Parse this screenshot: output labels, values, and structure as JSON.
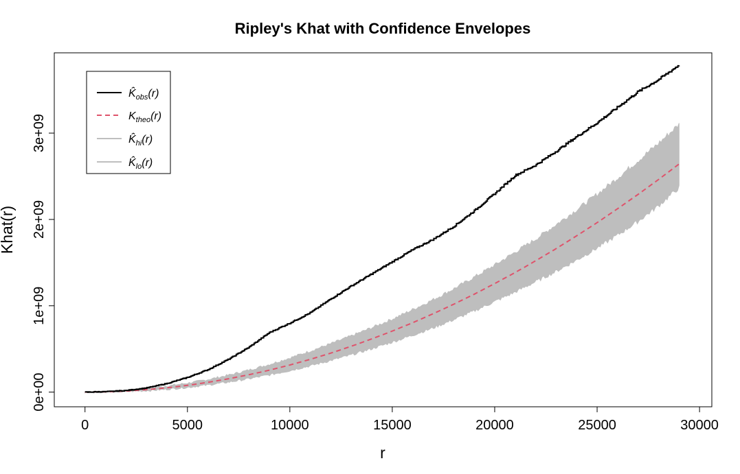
{
  "chart_data": {
    "type": "line",
    "title": "Ripley's Khat with Confidence Envelopes",
    "xlabel": "r",
    "ylabel": "Khat(r)",
    "xlim": [
      -1500,
      30600
    ],
    "ylim": [
      -170000000,
      3930000000
    ],
    "x_ticks": [
      0,
      5000,
      10000,
      15000,
      20000,
      25000,
      30000
    ],
    "x_tick_labels": [
      "0",
      "5000",
      "10000",
      "15000",
      "20000",
      "25000",
      "30000"
    ],
    "y_ticks": [
      0,
      1000000000,
      2000000000,
      3000000000
    ],
    "y_tick_labels": [
      "0e+00",
      "1e+09",
      "2e+09",
      "3e+09"
    ],
    "grid": false,
    "legend_position": "top-left",
    "legend": [
      {
        "label_main": "K̂",
        "label_sub": "obs",
        "label_tail": "(r)",
        "color": "#000000",
        "style": "solid"
      },
      {
        "label_main": "K",
        "label_sub": "theo",
        "label_tail": "(r)",
        "color": "#DF536B",
        "style": "dashed"
      },
      {
        "label_main": "K̂",
        "label_sub": "hi",
        "label_tail": "(r)",
        "color": "#BEBEBE",
        "style": "solid"
      },
      {
        "label_main": "K̂",
        "label_sub": "lo",
        "label_tail": "(r)",
        "color": "#BEBEBE",
        "style": "solid"
      }
    ],
    "x": [
      0,
      1000,
      2000,
      3000,
      4000,
      5000,
      6000,
      7000,
      8000,
      9000,
      10000,
      11000,
      12000,
      13000,
      14000,
      15000,
      16000,
      17000,
      18000,
      19000,
      20000,
      21000,
      22000,
      23000,
      24000,
      25000,
      26000,
      27000,
      28000,
      29000
    ],
    "series": [
      {
        "name": "obs",
        "color": "#000000",
        "values": [
          0,
          5000000,
          18000000,
          48000000,
          100000000,
          170000000,
          260000000,
          380000000,
          520000000,
          690000000,
          800000000,
          920000000,
          1080000000,
          1230000000,
          1370000000,
          1510000000,
          1650000000,
          1770000000,
          1920000000,
          2100000000,
          2300000000,
          2510000000,
          2630000000,
          2790000000,
          2960000000,
          3120000000,
          3300000000,
          3480000000,
          3620000000,
          3790000000
        ]
      },
      {
        "name": "theo",
        "color": "#DF536B",
        "values": [
          0,
          3000000,
          12000000,
          28000000,
          50000000,
          78000000,
          113000000,
          154000000,
          201000000,
          254000000,
          314000000,
          380000000,
          452000000,
          531000000,
          616000000,
          707000000,
          804000000,
          908000000,
          1018000000,
          1134000000,
          1257000000,
          1385000000,
          1521000000,
          1662000000,
          1810000000,
          1963000000,
          2124000000,
          2290000000,
          2463000000,
          2642000000
        ]
      },
      {
        "name": "hi",
        "color": "#BEBEBE",
        "values": [
          0,
          6000000,
          20000000,
          42000000,
          70000000,
          103000000,
          145000000,
          195000000,
          255000000,
          320000000,
          395000000,
          475000000,
          560000000,
          650000000,
          745000000,
          845000000,
          955000000,
          1070000000,
          1195000000,
          1330000000,
          1470000000,
          1620000000,
          1770000000,
          1940000000,
          2110000000,
          2290000000,
          2480000000,
          2680000000,
          2880000000,
          3100000000
        ]
      },
      {
        "name": "lo",
        "color": "#BEBEBE",
        "values": [
          0,
          1000000,
          6000000,
          17000000,
          33000000,
          55000000,
          83000000,
          116000000,
          155000000,
          200000000,
          250000000,
          305000000,
          367000000,
          432000000,
          503000000,
          580000000,
          660000000,
          745000000,
          840000000,
          940000000,
          1050000000,
          1160000000,
          1280000000,
          1400000000,
          1530000000,
          1670000000,
          1820000000,
          1980000000,
          2160000000,
          2370000000
        ]
      }
    ]
  }
}
